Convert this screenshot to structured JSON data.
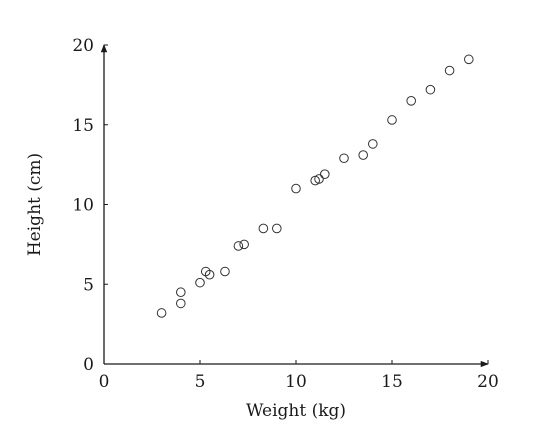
{
  "chart_data": {
    "type": "scatter",
    "xlabel": "Weight (kg)",
    "ylabel": "Height (cm)",
    "xlim": [
      0,
      20
    ],
    "ylim": [
      0,
      20
    ],
    "x_ticks": [
      0,
      5,
      10,
      15,
      20
    ],
    "y_ticks": [
      0,
      5,
      10,
      15,
      20
    ],
    "x_tick_labels": [
      "0",
      "5",
      "10",
      "15",
      "20"
    ],
    "y_tick_labels": [
      "0",
      "5",
      "10",
      "15",
      "20"
    ],
    "grid": false,
    "marker": "open-circle",
    "marker_color": "#333333",
    "series": [
      {
        "x": [
          3,
          4,
          4,
          5,
          5.3,
          5.5,
          6.3,
          7,
          7.3,
          8.3,
          9,
          10,
          11,
          11.2,
          11.5,
          12.5,
          13.5,
          14,
          15,
          16,
          17,
          18,
          19
        ],
        "y": [
          3.2,
          3.8,
          4.5,
          5.1,
          5.8,
          5.6,
          5.8,
          7.4,
          7.5,
          8.5,
          8.5,
          11,
          11.5,
          11.6,
          11.9,
          12.9,
          13.1,
          13.8,
          15.3,
          16.5,
          17.2,
          18.4,
          19.1
        ]
      }
    ]
  }
}
